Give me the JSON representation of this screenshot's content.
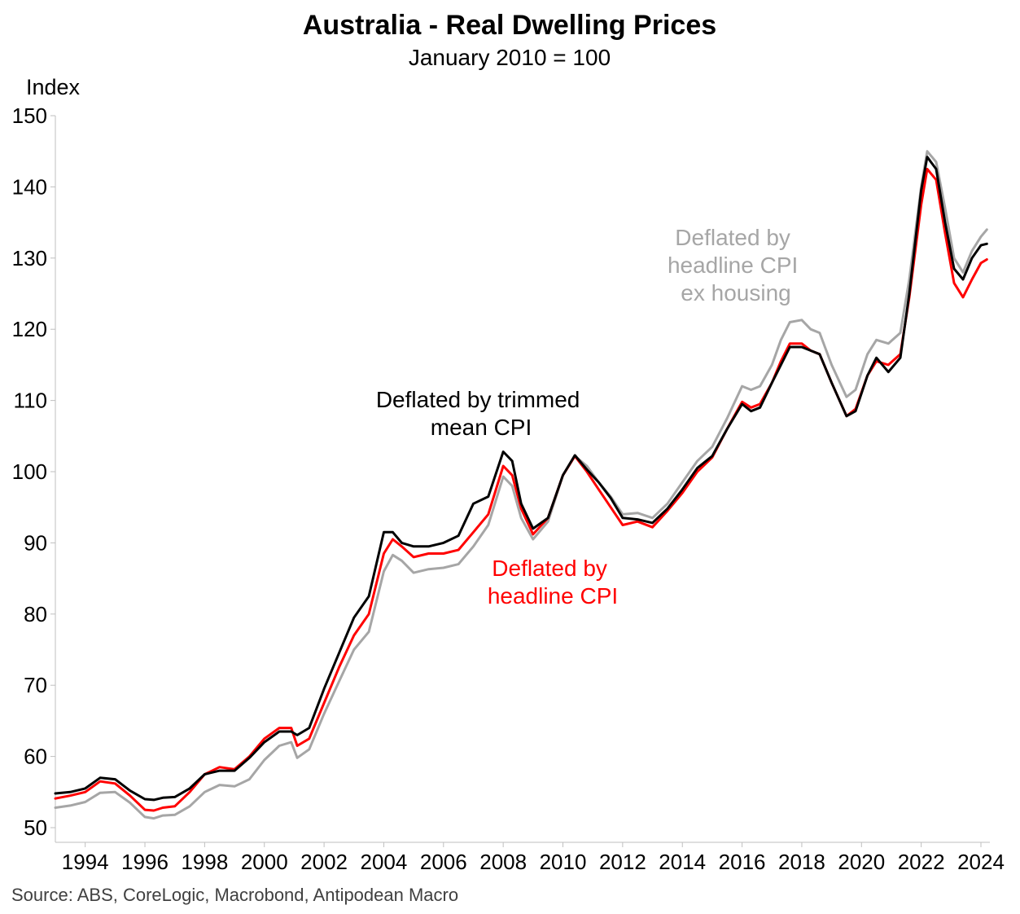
{
  "chart_data": {
    "type": "line",
    "title": "Australia - Real Dwelling Prices",
    "subtitle": "January 2010 = 100",
    "ylabel": "Index",
    "xlabel": "",
    "ylim": [
      50,
      150
    ],
    "yticks": [
      50,
      60,
      70,
      80,
      90,
      100,
      110,
      120,
      130,
      140,
      150
    ],
    "xlim": [
      1993.0,
      2024.3
    ],
    "xticks": [
      1994,
      1996,
      1998,
      2000,
      2002,
      2004,
      2006,
      2008,
      2010,
      2012,
      2014,
      2016,
      2018,
      2020,
      2022,
      2024
    ],
    "grid": false,
    "legend": "none",
    "source": "Source: ABS, CoreLogic, Macrobond, Antipodean Macro",
    "series": [
      {
        "name": "Deflated by headline CPI ex housing",
        "color": "#a6a6a6",
        "points": [
          [
            1993.0,
            52.8
          ],
          [
            1993.5,
            53.1
          ],
          [
            1994.0,
            53.6
          ],
          [
            1994.5,
            54.9
          ],
          [
            1995.0,
            55.0
          ],
          [
            1995.5,
            53.5
          ],
          [
            1996.0,
            51.5
          ],
          [
            1996.3,
            51.3
          ],
          [
            1996.6,
            51.7
          ],
          [
            1997.0,
            51.8
          ],
          [
            1997.5,
            53.0
          ],
          [
            1998.0,
            55.0
          ],
          [
            1998.5,
            56.0
          ],
          [
            1999.0,
            55.8
          ],
          [
            1999.5,
            56.8
          ],
          [
            2000.0,
            59.5
          ],
          [
            2000.5,
            61.5
          ],
          [
            2000.9,
            62.0
          ],
          [
            2001.1,
            59.8
          ],
          [
            2001.5,
            61.0
          ],
          [
            2002.0,
            66.0
          ],
          [
            2002.5,
            70.5
          ],
          [
            2003.0,
            75.0
          ],
          [
            2003.5,
            77.5
          ],
          [
            2004.0,
            86.0
          ],
          [
            2004.3,
            88.3
          ],
          [
            2004.6,
            87.5
          ],
          [
            2005.0,
            85.8
          ],
          [
            2005.5,
            86.3
          ],
          [
            2006.0,
            86.5
          ],
          [
            2006.5,
            87.0
          ],
          [
            2007.0,
            89.5
          ],
          [
            2007.5,
            92.5
          ],
          [
            2008.0,
            99.3
          ],
          [
            2008.3,
            98.0
          ],
          [
            2008.6,
            93.5
          ],
          [
            2009.0,
            90.5
          ],
          [
            2009.5,
            93.0
          ],
          [
            2010.0,
            99.5
          ],
          [
            2010.4,
            102.2
          ],
          [
            2010.8,
            100.8
          ],
          [
            2011.2,
            98.5
          ],
          [
            2011.6,
            96.5
          ],
          [
            2012.0,
            94.0
          ],
          [
            2012.5,
            94.2
          ],
          [
            2013.0,
            93.5
          ],
          [
            2013.5,
            95.5
          ],
          [
            2014.0,
            98.5
          ],
          [
            2014.5,
            101.5
          ],
          [
            2015.0,
            103.5
          ],
          [
            2015.5,
            107.5
          ],
          [
            2016.0,
            112.0
          ],
          [
            2016.3,
            111.5
          ],
          [
            2016.6,
            112.0
          ],
          [
            2017.0,
            115.0
          ],
          [
            2017.3,
            118.5
          ],
          [
            2017.6,
            121.0
          ],
          [
            2018.0,
            121.3
          ],
          [
            2018.3,
            120.0
          ],
          [
            2018.6,
            119.5
          ],
          [
            2019.0,
            115.0
          ],
          [
            2019.5,
            110.5
          ],
          [
            2019.8,
            111.5
          ],
          [
            2020.2,
            116.5
          ],
          [
            2020.5,
            118.5
          ],
          [
            2020.9,
            118.0
          ],
          [
            2021.3,
            119.5
          ],
          [
            2021.6,
            127.0
          ],
          [
            2022.0,
            140.0
          ],
          [
            2022.2,
            145.0
          ],
          [
            2022.5,
            143.5
          ],
          [
            2022.8,
            137.0
          ],
          [
            2023.1,
            130.0
          ],
          [
            2023.4,
            128.0
          ],
          [
            2023.7,
            131.0
          ],
          [
            2024.0,
            133.0
          ],
          [
            2024.2,
            134.0
          ]
        ]
      },
      {
        "name": "Deflated by headline CPI",
        "color": "#ff0000",
        "points": [
          [
            1993.0,
            54.1
          ],
          [
            1993.5,
            54.5
          ],
          [
            1994.0,
            55.0
          ],
          [
            1994.5,
            56.5
          ],
          [
            1995.0,
            56.2
          ],
          [
            1995.5,
            54.5
          ],
          [
            1996.0,
            52.5
          ],
          [
            1996.3,
            52.4
          ],
          [
            1996.6,
            52.8
          ],
          [
            1997.0,
            53.0
          ],
          [
            1997.5,
            55.0
          ],
          [
            1998.0,
            57.5
          ],
          [
            1998.5,
            58.5
          ],
          [
            1999.0,
            58.2
          ],
          [
            1999.5,
            60.0
          ],
          [
            2000.0,
            62.5
          ],
          [
            2000.5,
            64.0
          ],
          [
            2000.9,
            64.0
          ],
          [
            2001.1,
            61.5
          ],
          [
            2001.5,
            62.5
          ],
          [
            2002.0,
            67.5
          ],
          [
            2002.5,
            72.5
          ],
          [
            2003.0,
            77.0
          ],
          [
            2003.5,
            80.0
          ],
          [
            2004.0,
            88.5
          ],
          [
            2004.3,
            90.5
          ],
          [
            2004.6,
            89.5
          ],
          [
            2005.0,
            88.0
          ],
          [
            2005.5,
            88.5
          ],
          [
            2006.0,
            88.5
          ],
          [
            2006.5,
            89.0
          ],
          [
            2007.0,
            91.5
          ],
          [
            2007.5,
            94.0
          ],
          [
            2008.0,
            100.8
          ],
          [
            2008.3,
            99.5
          ],
          [
            2008.6,
            94.8
          ],
          [
            2009.0,
            91.2
          ],
          [
            2009.5,
            93.5
          ],
          [
            2010.0,
            99.5
          ],
          [
            2010.4,
            102.2
          ],
          [
            2010.8,
            100.0
          ],
          [
            2011.2,
            97.5
          ],
          [
            2011.6,
            95.0
          ],
          [
            2012.0,
            92.5
          ],
          [
            2012.5,
            93.0
          ],
          [
            2013.0,
            92.2
          ],
          [
            2013.5,
            94.5
          ],
          [
            2014.0,
            97.0
          ],
          [
            2014.5,
            100.0
          ],
          [
            2015.0,
            102.0
          ],
          [
            2015.5,
            106.0
          ],
          [
            2016.0,
            109.8
          ],
          [
            2016.3,
            109.0
          ],
          [
            2016.6,
            109.5
          ],
          [
            2017.0,
            112.5
          ],
          [
            2017.3,
            115.5
          ],
          [
            2017.6,
            118.0
          ],
          [
            2018.0,
            118.0
          ],
          [
            2018.3,
            117.0
          ],
          [
            2018.6,
            116.5
          ],
          [
            2019.0,
            112.5
          ],
          [
            2019.5,
            107.8
          ],
          [
            2019.8,
            108.8
          ],
          [
            2020.2,
            113.5
          ],
          [
            2020.5,
            115.5
          ],
          [
            2020.9,
            115.0
          ],
          [
            2021.3,
            116.5
          ],
          [
            2021.6,
            124.5
          ],
          [
            2022.0,
            137.5
          ],
          [
            2022.2,
            142.5
          ],
          [
            2022.5,
            141.0
          ],
          [
            2022.8,
            133.5
          ],
          [
            2023.1,
            126.5
          ],
          [
            2023.4,
            124.5
          ],
          [
            2023.7,
            127.0
          ],
          [
            2024.0,
            129.3
          ],
          [
            2024.2,
            129.8
          ]
        ]
      },
      {
        "name": "Deflated by trimmed mean CPI",
        "color": "#000000",
        "points": [
          [
            1993.0,
            54.8
          ],
          [
            1993.5,
            55.0
          ],
          [
            1994.0,
            55.5
          ],
          [
            1994.5,
            57.0
          ],
          [
            1995.0,
            56.8
          ],
          [
            1995.5,
            55.2
          ],
          [
            1996.0,
            54.0
          ],
          [
            1996.3,
            53.9
          ],
          [
            1996.6,
            54.2
          ],
          [
            1997.0,
            54.3
          ],
          [
            1997.5,
            55.5
          ],
          [
            1998.0,
            57.5
          ],
          [
            1998.5,
            58.0
          ],
          [
            1999.0,
            58.0
          ],
          [
            1999.5,
            59.8
          ],
          [
            2000.0,
            62.0
          ],
          [
            2000.5,
            63.5
          ],
          [
            2000.9,
            63.5
          ],
          [
            2001.1,
            63.0
          ],
          [
            2001.5,
            64.0
          ],
          [
            2002.0,
            69.5
          ],
          [
            2002.5,
            74.5
          ],
          [
            2003.0,
            79.5
          ],
          [
            2003.5,
            82.5
          ],
          [
            2004.0,
            91.5
          ],
          [
            2004.3,
            91.5
          ],
          [
            2004.6,
            90.0
          ],
          [
            2005.0,
            89.5
          ],
          [
            2005.5,
            89.5
          ],
          [
            2006.0,
            90.0
          ],
          [
            2006.5,
            91.0
          ],
          [
            2007.0,
            95.5
          ],
          [
            2007.5,
            96.5
          ],
          [
            2008.0,
            102.8
          ],
          [
            2008.3,
            101.5
          ],
          [
            2008.6,
            95.5
          ],
          [
            2009.0,
            92.0
          ],
          [
            2009.5,
            93.5
          ],
          [
            2010.0,
            99.5
          ],
          [
            2010.4,
            102.3
          ],
          [
            2010.8,
            100.3
          ],
          [
            2011.2,
            98.5
          ],
          [
            2011.6,
            96.3
          ],
          [
            2012.0,
            93.5
          ],
          [
            2012.5,
            93.3
          ],
          [
            2013.0,
            92.8
          ],
          [
            2013.5,
            94.8
          ],
          [
            2014.0,
            97.5
          ],
          [
            2014.5,
            100.5
          ],
          [
            2015.0,
            102.2
          ],
          [
            2015.5,
            106.0
          ],
          [
            2016.0,
            109.5
          ],
          [
            2016.3,
            108.5
          ],
          [
            2016.6,
            109.0
          ],
          [
            2017.0,
            112.5
          ],
          [
            2017.3,
            115.0
          ],
          [
            2017.6,
            117.5
          ],
          [
            2018.0,
            117.5
          ],
          [
            2018.3,
            117.0
          ],
          [
            2018.6,
            116.5
          ],
          [
            2019.0,
            112.5
          ],
          [
            2019.5,
            107.8
          ],
          [
            2019.8,
            108.5
          ],
          [
            2020.2,
            113.5
          ],
          [
            2020.5,
            116.0
          ],
          [
            2020.9,
            114.0
          ],
          [
            2021.3,
            116.0
          ],
          [
            2021.6,
            125.0
          ],
          [
            2022.0,
            139.5
          ],
          [
            2022.2,
            144.2
          ],
          [
            2022.5,
            142.5
          ],
          [
            2022.8,
            135.0
          ],
          [
            2023.1,
            128.5
          ],
          [
            2023.4,
            127.0
          ],
          [
            2023.7,
            130.0
          ],
          [
            2024.0,
            131.8
          ],
          [
            2024.2,
            132.0
          ]
        ]
      }
    ],
    "annotations": [
      {
        "lines": [
          "Deflated by trimmed",
          "mean CPI"
        ],
        "color": "#000000"
      },
      {
        "lines": [
          "Deflated by",
          "headline CPI"
        ],
        "color": "#ff0000"
      },
      {
        "lines": [
          "Deflated by",
          "headline CPI",
          "ex housing"
        ],
        "color": "#a6a6a6"
      }
    ]
  }
}
